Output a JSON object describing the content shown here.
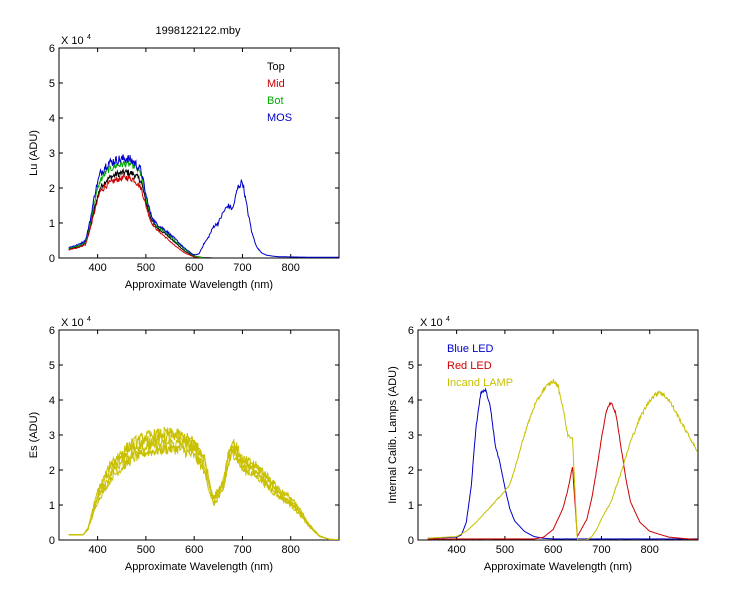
{
  "figure": {
    "title": "1998122122.mby"
  },
  "chart_data": [
    {
      "id": "lu",
      "type": "line",
      "title": "1998122122.mby",
      "xlabel": "Approximate Wavelength (nm)",
      "ylabel": "Lu (ADU)",
      "y_multiplier": "X 10",
      "y_exponent": "4",
      "xlim": [
        320,
        900
      ],
      "ylim": [
        0,
        60000
      ],
      "xticks": [
        400,
        500,
        600,
        700,
        800
      ],
      "yticks": [
        0,
        10000,
        20000,
        30000,
        40000,
        50000,
        60000
      ],
      "ytick_labels": [
        "0",
        "1",
        "2",
        "3",
        "4",
        "5",
        "6"
      ],
      "legend": "top-right",
      "series": [
        {
          "name": "Top",
          "color": "#000000",
          "noise": 0.04,
          "x": [
            340,
            360,
            375,
            385,
            395,
            405,
            420,
            440,
            460,
            475,
            490,
            500,
            510,
            520,
            540,
            560,
            580,
            600,
            620,
            640
          ],
          "y": [
            2500,
            3200,
            4200,
            9000,
            15000,
            20000,
            22500,
            24000,
            24500,
            24000,
            22000,
            16000,
            11500,
            9000,
            7000,
            4500,
            2000,
            500,
            100,
            0
          ]
        },
        {
          "name": "Mid",
          "color": "#cc0000",
          "noise": 0.04,
          "x": [
            340,
            360,
            375,
            385,
            395,
            405,
            420,
            440,
            460,
            475,
            490,
            500,
            510,
            520,
            540,
            560,
            580,
            600,
            620
          ],
          "y": [
            2300,
            3000,
            3800,
            8500,
            14000,
            19000,
            21000,
            22500,
            23000,
            22500,
            20000,
            15000,
            10500,
            8500,
            6000,
            3500,
            1500,
            300,
            0
          ]
        },
        {
          "name": "Bot",
          "color": "#00aa00",
          "noise": 0.04,
          "x": [
            340,
            360,
            375,
            385,
            395,
            405,
            420,
            440,
            460,
            475,
            490,
            500,
            510,
            520,
            540,
            560,
            580,
            600,
            620
          ],
          "y": [
            2800,
            3500,
            4500,
            10000,
            17000,
            22000,
            25000,
            26500,
            27000,
            26500,
            24000,
            17000,
            12000,
            9500,
            7500,
            5000,
            2500,
            600,
            0
          ]
        },
        {
          "name": "MOS",
          "color": "#0000cc",
          "noise": 0.05,
          "x": [
            340,
            360,
            375,
            385,
            395,
            405,
            420,
            440,
            460,
            475,
            490,
            500,
            510,
            520,
            540,
            560,
            580,
            600,
            610,
            620,
            630,
            640,
            650,
            660,
            670,
            680,
            690,
            700,
            710,
            720,
            730,
            740,
            750,
            770,
            800,
            850,
            900
          ],
          "y": [
            3000,
            3800,
            5000,
            11000,
            19000,
            24000,
            27000,
            28000,
            28500,
            27500,
            25000,
            18000,
            12500,
            10000,
            8000,
            5500,
            2800,
            800,
            1200,
            4000,
            6000,
            9000,
            10000,
            13000,
            15000,
            14000,
            20000,
            22000,
            14000,
            7000,
            3000,
            1500,
            800,
            400,
            300,
            200,
            200
          ]
        }
      ]
    },
    {
      "id": "es",
      "type": "line",
      "xlabel": "Approximate Wavelength (nm)",
      "ylabel": "Es (ADU)",
      "y_multiplier": "X 10",
      "y_exponent": "4",
      "xlim": [
        320,
        900
      ],
      "ylim": [
        0,
        60000
      ],
      "xticks": [
        400,
        500,
        600,
        700,
        800
      ],
      "yticks": [
        0,
        10000,
        20000,
        30000,
        40000,
        50000,
        60000
      ],
      "ytick_labels": [
        "0",
        "1",
        "2",
        "3",
        "4",
        "5",
        "6"
      ],
      "series": [
        {
          "color": "#c8c000",
          "noise": 0.06,
          "x": [
            340,
            370,
            380,
            400,
            430,
            470,
            500,
            540,
            570,
            600,
            620,
            640,
            660,
            670,
            680,
            690,
            700,
            720,
            740,
            760,
            780,
            800,
            820,
            840,
            860,
            880,
            900
          ],
          "y": [
            1500,
            1500,
            3000,
            11000,
            18000,
            23000,
            25000,
            26000,
            26000,
            24000,
            20000,
            10000,
            14000,
            21000,
            25000,
            23000,
            20000,
            19000,
            17000,
            14000,
            12000,
            10000,
            7000,
            3500,
            1000,
            200,
            100
          ]
        },
        {
          "color": "#c8c000",
          "noise": 0.06,
          "x": [
            340,
            370,
            380,
            400,
            430,
            470,
            500,
            540,
            570,
            600,
            620,
            640,
            660,
            670,
            680,
            690,
            700,
            720,
            740,
            760,
            780,
            800,
            820,
            840,
            860,
            880,
            900
          ],
          "y": [
            1500,
            1500,
            3000,
            12000,
            19500,
            24500,
            26500,
            27500,
            27500,
            25500,
            21500,
            11000,
            15000,
            22000,
            26000,
            24000,
            21000,
            20000,
            18000,
            15000,
            12500,
            10500,
            7500,
            3800,
            1000,
            200,
            100
          ]
        },
        {
          "color": "#c8c000",
          "noise": 0.06,
          "x": [
            340,
            370,
            380,
            400,
            430,
            470,
            500,
            540,
            570,
            600,
            620,
            640,
            660,
            670,
            680,
            690,
            700,
            720,
            740,
            760,
            780,
            800,
            820,
            840,
            860,
            880,
            900
          ],
          "y": [
            1500,
            1500,
            3200,
            13000,
            21000,
            26000,
            28000,
            29000,
            29000,
            27000,
            23000,
            11500,
            16000,
            23500,
            27000,
            25000,
            22000,
            21000,
            19000,
            16000,
            13000,
            11000,
            8000,
            4000,
            1100,
            200,
            100
          ]
        },
        {
          "color": "#c8c000",
          "noise": 0.06,
          "x": [
            340,
            370,
            380,
            400,
            430,
            470,
            500,
            540,
            570,
            600,
            620,
            640,
            660,
            670,
            680,
            690,
            700,
            720,
            740,
            760,
            780,
            800,
            820,
            840,
            860,
            880,
            900
          ],
          "y": [
            1500,
            1500,
            3400,
            14000,
            22500,
            27500,
            29500,
            30500,
            30000,
            28000,
            24000,
            12000,
            17000,
            24500,
            28000,
            26000,
            23000,
            22000,
            20000,
            17000,
            14000,
            12000,
            8500,
            4200,
            1200,
            200,
            100
          ]
        }
      ]
    },
    {
      "id": "lamps",
      "type": "line",
      "xlabel": "Approximate Wavelength (nm)",
      "ylabel": "Internal Calib. Lamps (ADU)",
      "y_multiplier": "X 10",
      "y_exponent": "4",
      "xlim": [
        320,
        900
      ],
      "ylim": [
        0,
        60000
      ],
      "xticks": [
        400,
        500,
        600,
        700,
        800
      ],
      "yticks": [
        0,
        10000,
        20000,
        30000,
        40000,
        50000,
        60000
      ],
      "ytick_labels": [
        "0",
        "1",
        "2",
        "3",
        "4",
        "5",
        "6"
      ],
      "legend": "top-left",
      "series": [
        {
          "name": "Blue LED",
          "color": "#0000cc",
          "noise": 0.01,
          "x": [
            340,
            400,
            410,
            420,
            430,
            440,
            450,
            460,
            470,
            480,
            490,
            500,
            510,
            520,
            540,
            560,
            580,
            600,
            650,
            700,
            800,
            900
          ],
          "y": [
            500,
            800,
            1500,
            5000,
            15000,
            32000,
            42000,
            43000,
            38000,
            27000,
            22000,
            15000,
            9000,
            5500,
            2500,
            1000,
            500,
            300,
            300,
            300,
            300,
            300
          ]
        },
        {
          "name": "Red LED",
          "color": "#cc0000",
          "noise": 0.01,
          "x": [
            340,
            500,
            560,
            580,
            600,
            610,
            620,
            630,
            640,
            650,
            660,
            670,
            680,
            690,
            700,
            710,
            720,
            730,
            740,
            750,
            760,
            780,
            800,
            840,
            880,
            900
          ],
          "y": [
            300,
            300,
            300,
            800,
            3000,
            6000,
            9000,
            14000,
            21000,
            1000,
            3500,
            6000,
            12000,
            20000,
            29000,
            37000,
            39500,
            36000,
            27000,
            18000,
            11000,
            5000,
            2500,
            800,
            300,
            200
          ]
        },
        {
          "name": "Incand LAMP",
          "color": "#c8c000",
          "noise": 0.015,
          "x": [
            340,
            400,
            420,
            440,
            460,
            480,
            500,
            510,
            520,
            540,
            560,
            580,
            600,
            610,
            620,
            630,
            640,
            650,
            660,
            670,
            680,
            690,
            700,
            720,
            740,
            760,
            780,
            800,
            820,
            840,
            860,
            880,
            900
          ],
          "y": [
            500,
            1000,
            2500,
            5000,
            8000,
            11000,
            14000,
            16000,
            20000,
            30000,
            38000,
            43000,
            45500,
            44000,
            38000,
            30000,
            29000,
            0,
            0,
            0,
            1000,
            3000,
            6000,
            11000,
            19000,
            28000,
            35000,
            40000,
            42500,
            40000,
            35000,
            30000,
            25000
          ]
        }
      ]
    }
  ]
}
